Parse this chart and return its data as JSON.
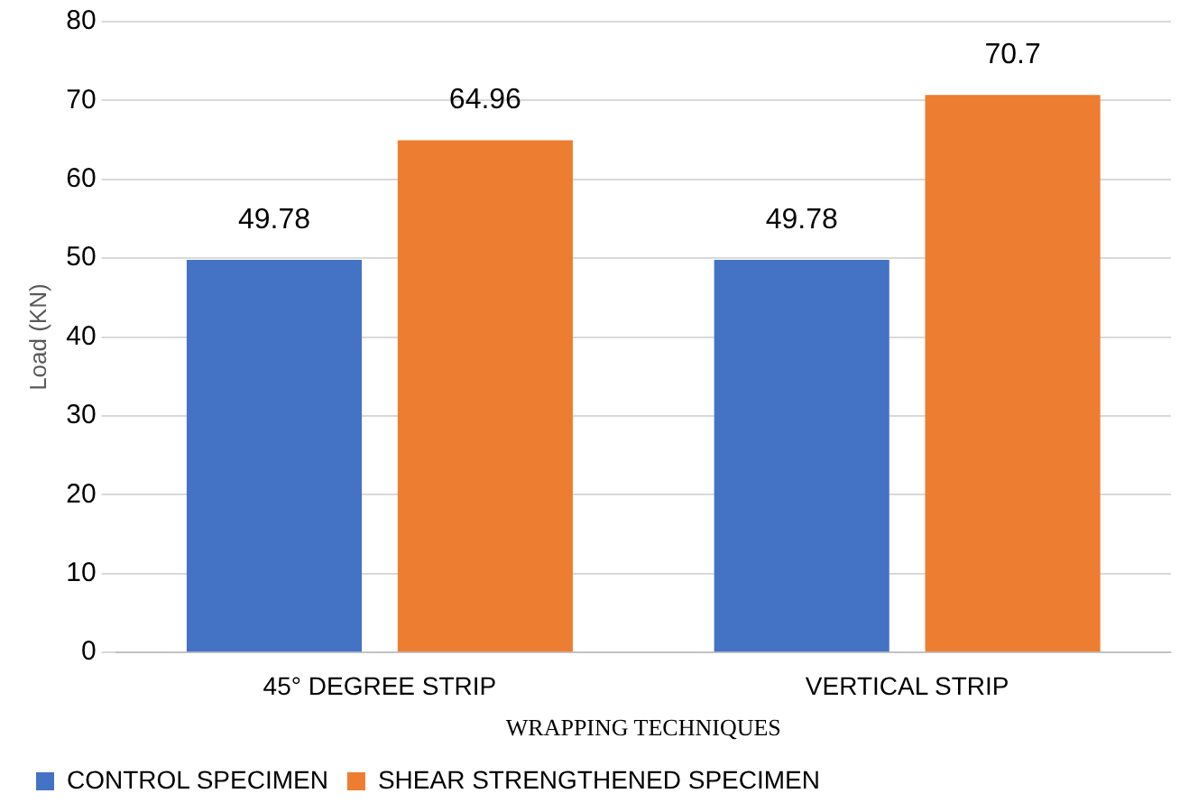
{
  "chart_data": {
    "type": "bar",
    "ylabel": "Load (KN)",
    "xlabel": "WRAPPING TECHNIQUES",
    "categories": [
      "45° DEGREE STRIP",
      "VERTICAL STRIP"
    ],
    "series": [
      {
        "name": "CONTROL SPECIMEN",
        "color": "#4472c4",
        "values": [
          49.78,
          49.78
        ]
      },
      {
        "name": "SHEAR STRENGTHENED SPECIMEN",
        "color": "#ed7d31",
        "values": [
          64.96,
          70.7
        ]
      }
    ],
    "ylim": [
      0,
      80
    ],
    "yticks": [
      0,
      10,
      20,
      30,
      40,
      50,
      60,
      70,
      80
    ],
    "grid": "y",
    "legend": "bottom left",
    "data_labels": true
  }
}
